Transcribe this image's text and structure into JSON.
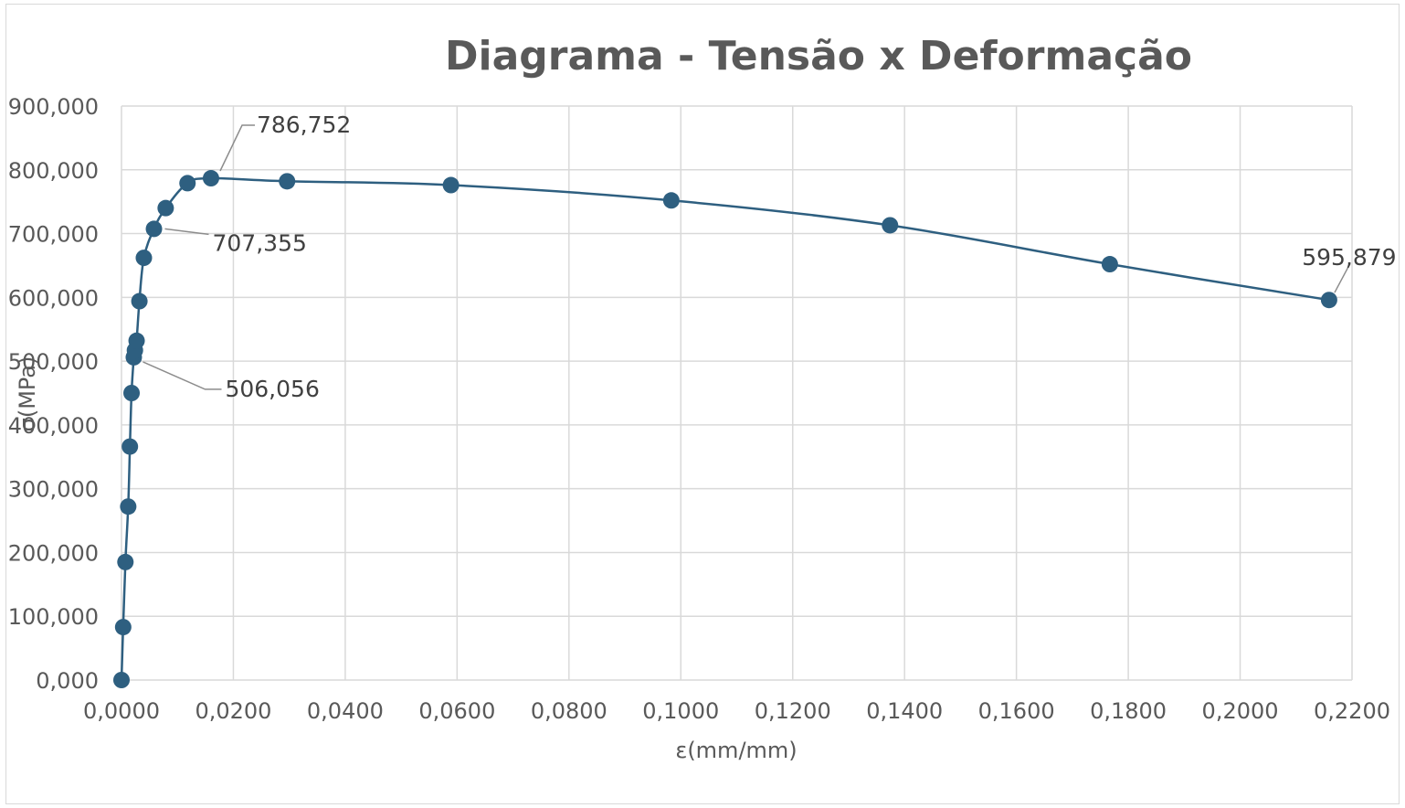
{
  "chart_data": {
    "type": "scatter",
    "title": "Diagrama - Tensão x Deformação",
    "xlabel": "ε(mm/mm)",
    "ylabel": "σ(MPa)",
    "xlim": [
      0,
      0.22
    ],
    "ylim": [
      0,
      900
    ],
    "x_ticks": [
      "0,0000",
      "0,0200",
      "0,0400",
      "0,0600",
      "0,0800",
      "0,1000",
      "0,1200",
      "0,1400",
      "0,1600",
      "0,1800",
      "0,2000",
      "0,2200"
    ],
    "y_ticks": [
      "0,000",
      "100,000",
      "200,000",
      "300,000",
      "400,000",
      "500,000",
      "600,000",
      "700,000",
      "800,000",
      "900,000"
    ],
    "grid": true,
    "legend": "none",
    "colors": {
      "series": "#2e5f80",
      "line": "#2e5f80",
      "grid": "#d9d9d9",
      "text": "#595959"
    },
    "series": [
      {
        "x": [
          0.0,
          0.0003,
          0.0007,
          0.0012,
          0.0015,
          0.0018,
          0.0022,
          0.0024,
          0.0027,
          0.0032,
          0.004,
          0.0058,
          0.0079,
          0.0118,
          0.016,
          0.0296,
          0.0589,
          0.0983,
          0.1374,
          0.1767,
          0.2159
        ],
        "y": [
          0.0,
          83,
          185,
          272,
          366,
          450,
          506.056,
          517,
          532,
          594,
          662,
          707.355,
          740,
          779,
          786.752,
          782,
          776,
          752,
          713,
          652,
          595.879
        ]
      }
    ],
    "data_labels": [
      {
        "text": "786,752",
        "x": 0.016,
        "y": 786.752
      },
      {
        "text": "707,355",
        "x": 0.0058,
        "y": 707.355
      },
      {
        "text": "506,056",
        "x": 0.0022,
        "y": 506.056
      },
      {
        "text": "595,879",
        "x": 0.2159,
        "y": 595.879
      }
    ]
  }
}
